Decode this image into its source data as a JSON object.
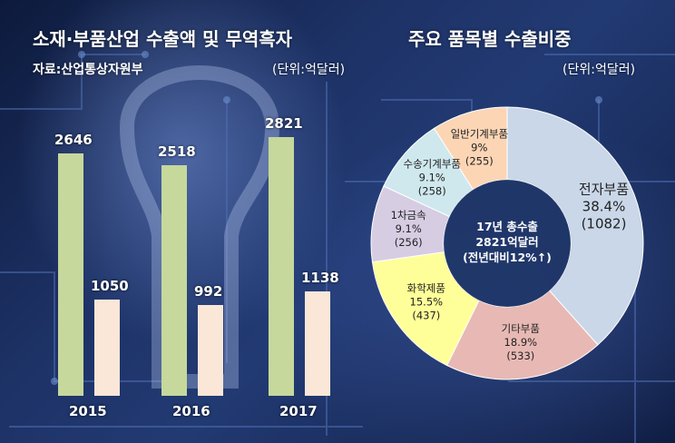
{
  "header": {
    "left_title": "소재·부품산업 수출액 및 무역흑자",
    "right_title": "주요 품목별 수출비중",
    "source": "자료:산업통상자원부",
    "unit_left": "(단위:억달러)",
    "unit_right": "(단위:억달러)"
  },
  "chart_data": [
    {
      "type": "bar",
      "categories": [
        "2015",
        "2016",
        "2017"
      ],
      "series": [
        {
          "values": [
            2646,
            2518,
            2821
          ]
        },
        {
          "values": [
            1050,
            992,
            1138
          ]
        }
      ],
      "ylim": [
        0,
        2821
      ],
      "grid": false,
      "colors": [
        "#c6d89b",
        "#fbe7d8"
      ]
    },
    {
      "type": "pie",
      "title": "",
      "center_text": [
        "17년 총수출",
        "2821억달러",
        "(전년대비12%↑)"
      ],
      "slices": [
        {
          "label": "전자부품",
          "percent": "38.4%",
          "value": "(1082)",
          "share": 38.4,
          "color": "#c9d7e8"
        },
        {
          "label": "기타부품",
          "percent": "18.9%",
          "value": "(533)",
          "share": 18.9,
          "color": "#e8b9b4"
        },
        {
          "label": "화학제품",
          "percent": "15.5%",
          "value": "(437)",
          "share": 15.5,
          "color": "#ffff99"
        },
        {
          "label": "1차금속",
          "percent": "9.1%",
          "value": "(256)",
          "share": 9.1,
          "color": "#d6cde3"
        },
        {
          "label": "수송기계부품",
          "percent": "9.1%",
          "value": "(258)",
          "share": 9.1,
          "color": "#cfe8ee"
        },
        {
          "label": "일반기계부품",
          "percent": "9%",
          "value": "(255)",
          "share": 9.0,
          "color": "#fcd5b5"
        }
      ]
    }
  ]
}
